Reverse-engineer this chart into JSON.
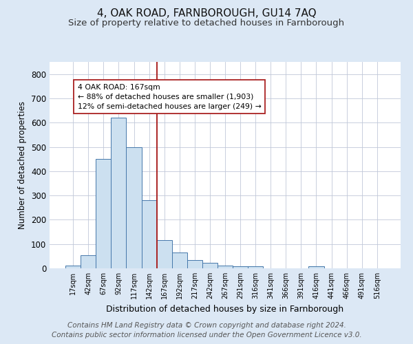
{
  "title": "4, OAK ROAD, FARNBOROUGH, GU14 7AQ",
  "subtitle": "Size of property relative to detached houses in Farnborough",
  "xlabel": "Distribution of detached houses by size in Farnborough",
  "ylabel": "Number of detached properties",
  "bar_labels": [
    "17sqm",
    "42sqm",
    "67sqm",
    "92sqm",
    "117sqm",
    "142sqm",
    "167sqm",
    "192sqm",
    "217sqm",
    "242sqm",
    "267sqm",
    "291sqm",
    "316sqm",
    "341sqm",
    "366sqm",
    "391sqm",
    "416sqm",
    "441sqm",
    "466sqm",
    "491sqm",
    "516sqm"
  ],
  "bar_values": [
    10,
    55,
    450,
    620,
    500,
    280,
    115,
    65,
    35,
    22,
    10,
    8,
    8,
    0,
    0,
    0,
    8,
    0,
    0,
    0,
    0
  ],
  "bar_color": "#cce0f0",
  "bar_edge_color": "#4477aa",
  "vline_color": "#aa2222",
  "annotation_text": "4 OAK ROAD: 167sqm\n← 88% of detached houses are smaller (1,903)\n12% of semi-detached houses are larger (249) →",
  "annotation_box_color": "#ffffff",
  "annotation_box_edge": "#aa2222",
  "ylim": [
    0,
    850
  ],
  "yticks": [
    0,
    100,
    200,
    300,
    400,
    500,
    600,
    700,
    800
  ],
  "footer_line1": "Contains HM Land Registry data © Crown copyright and database right 2024.",
  "footer_line2": "Contains public sector information licensed under the Open Government Licence v3.0.",
  "background_color": "#dce8f5",
  "plot_bg_color": "#ffffff",
  "title_fontsize": 11,
  "subtitle_fontsize": 9.5,
  "footer_fontsize": 7.5,
  "vline_bar_index": 6
}
